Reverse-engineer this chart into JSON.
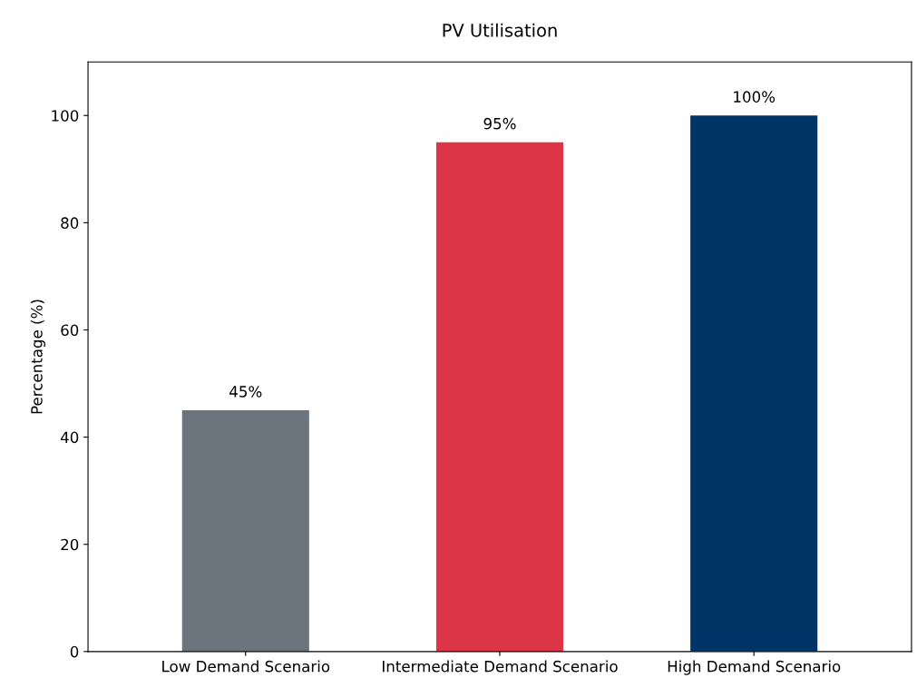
{
  "chart_data": {
    "type": "bar",
    "title": "PV Utilisation",
    "ylabel": "Percentage (%)",
    "categories": [
      "Low Demand Scenario",
      "Intermediate Demand Scenario",
      "High Demand Scenario"
    ],
    "values": [
      45,
      95,
      100
    ],
    "colors": [
      "#6c757d",
      "#dc3545",
      "#003366"
    ],
    "value_labels": [
      "45%",
      "95%",
      "100%"
    ],
    "ylim": [
      0,
      110
    ],
    "yticks": [
      0,
      20,
      40,
      60,
      80,
      100
    ],
    "grid": false,
    "legend": false
  }
}
